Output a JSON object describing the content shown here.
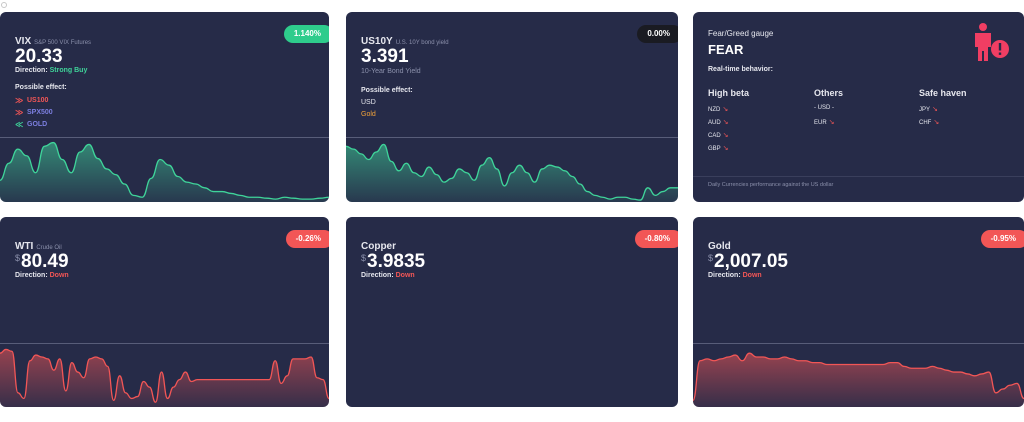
{
  "cards": {
    "vix": {
      "symbol": "VIX",
      "subtitle": "S&P 500 VIX Futures",
      "price": "20.33",
      "direction_label": "Direction:",
      "direction_value": "Strong Buy",
      "badge": "1.140%",
      "effects_label": "Possible effect:",
      "effects": [
        {
          "arrow": "»",
          "name": "US100",
          "color": "red"
        },
        {
          "arrow": "»",
          "name": "SPX500",
          "color": "blue"
        },
        {
          "arrow": "»",
          "name": "GOLD",
          "color": "green"
        }
      ]
    },
    "us10y": {
      "symbol": "US10Y",
      "subtitle": "U.S. 10Y bond yield",
      "price": "3.391",
      "subtext": "10-Year Bond Yield",
      "badge": "0.00%",
      "effects_label": "Possible effect:",
      "effect_usd": "USD",
      "effect_gold": "Gold"
    },
    "fear": {
      "title": "Fear/Greed gauge",
      "value": "FEAR",
      "realtime_label": "Real-time behavior:",
      "columns": [
        {
          "header": "High beta",
          "items": [
            "NZD",
            "AUD",
            "CAD",
            "GBP"
          ]
        },
        {
          "header": "Others",
          "items": [
            "- USD -",
            "EUR"
          ]
        },
        {
          "header": "Safe haven",
          "items": [
            "JPY",
            "CHF"
          ]
        }
      ],
      "footer": "Daily Currencies performance against the US dollar"
    },
    "wti": {
      "symbol": "WTI",
      "subtitle": "Crude Oil",
      "currency": "$",
      "price": "80.49",
      "direction_label": "Direction:",
      "direction_value": "Down",
      "badge": "-0.26%"
    },
    "copper": {
      "symbol": "Copper",
      "currency": "$",
      "price": "3.9835",
      "direction_label": "Direction:",
      "direction_value": "Down",
      "badge": "-0.80%"
    },
    "gold": {
      "symbol": "Gold",
      "currency": "$",
      "price": "2,007.05",
      "direction_label": "Direction:",
      "direction_value": "Down",
      "badge": "-0.95%"
    }
  },
  "colors": {
    "card_bg": "#262b48",
    "green": "#2ecc8c",
    "red": "#f25656",
    "gold_text": "#f2a33a",
    "fear_icon": "#f03e63"
  },
  "chart_data": [
    {
      "type": "area",
      "name": "vix-sparkline",
      "color": "#3fd49a",
      "values": [
        22,
        40,
        55,
        48,
        30,
        58,
        62,
        44,
        30,
        52,
        60,
        45,
        34,
        28,
        18,
        6,
        4,
        24,
        44,
        38,
        26,
        20,
        18,
        14,
        10,
        10,
        8,
        6,
        4,
        4,
        3,
        2,
        4,
        3,
        2,
        2,
        3,
        4
      ]
    },
    {
      "type": "area",
      "name": "us10y-sparkline",
      "color": "#3fd49a",
      "values": [
        58,
        55,
        50,
        44,
        52,
        60,
        42,
        32,
        40,
        30,
        26,
        36,
        28,
        20,
        24,
        34,
        30,
        22,
        38,
        46,
        34,
        16,
        30,
        38,
        30,
        20,
        34,
        38,
        36,
        32,
        26,
        18,
        10,
        6,
        4,
        2,
        4,
        4,
        2,
        1,
        14,
        6,
        10,
        14,
        14
      ]
    },
    {
      "type": "area",
      "name": "wti-sparkline",
      "color": "#f25656",
      "values": [
        56,
        60,
        58,
        14,
        8,
        48,
        54,
        52,
        50,
        38,
        50,
        16,
        46,
        36,
        30,
        50,
        52,
        50,
        42,
        6,
        32,
        14,
        8,
        10,
        26,
        20,
        4,
        36,
        8,
        20,
        28,
        36,
        26,
        28,
        28,
        28,
        28,
        28,
        28,
        28,
        28,
        28,
        28,
        28,
        28,
        28,
        48,
        24,
        32,
        50,
        50,
        50,
        52,
        30,
        28,
        8
      ]
    },
    {
      "type": "area",
      "name": "gold-sparkline",
      "color": "#f25656",
      "values": [
        6,
        48,
        50,
        48,
        50,
        52,
        54,
        48,
        56,
        52,
        52,
        50,
        50,
        52,
        50,
        48,
        48,
        46,
        46,
        44,
        44,
        44,
        44,
        44,
        44,
        44,
        44,
        44,
        46,
        46,
        42,
        40,
        40,
        40,
        42,
        40,
        38,
        36,
        36,
        34,
        32,
        34,
        36,
        14,
        18,
        22,
        24,
        8
      ]
    }
  ]
}
